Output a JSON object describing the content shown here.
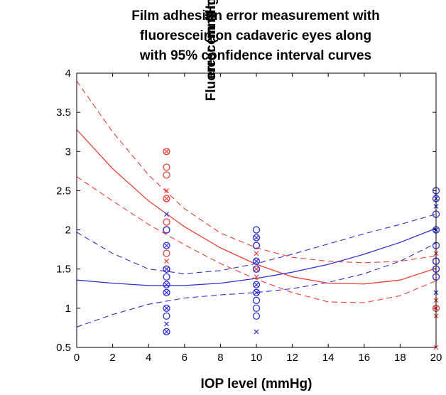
{
  "chart_data": {
    "type": "scatter",
    "title_lines": [
      "Film adhesion error measurement with",
      "fluorescein on cadaveric eyes along",
      "with 95% confidence interval curves"
    ],
    "xlabel": "IOP level (mmHg)",
    "ylabel_lines": [
      "Fluorescein film adhesion",
      "error (mmHg)"
    ],
    "xlim": [
      0,
      20
    ],
    "ylim": [
      0.5,
      4
    ],
    "x_ticks": [
      "0",
      "2",
      "4",
      "6",
      "8",
      "10",
      "12",
      "14",
      "16",
      "18",
      "20"
    ],
    "y_ticks": [
      "0.5",
      "1",
      "1.5",
      "2",
      "2.5",
      "3",
      "3.5",
      "4"
    ],
    "grid": false,
    "colors": {
      "red": "#e8403a",
      "blue": "#2f2fcc"
    },
    "series": [
      {
        "color": "red",
        "circles": [
          {
            "x": 5,
            "y": 3.0
          },
          {
            "x": 5,
            "y": 2.8
          },
          {
            "x": 5,
            "y": 2.7
          },
          {
            "x": 5,
            "y": 2.4
          },
          {
            "x": 5,
            "y": 2.1
          },
          {
            "x": 5,
            "y": 2.0
          },
          {
            "x": 5,
            "y": 1.7
          },
          {
            "x": 5,
            "y": 1.5
          },
          {
            "x": 10,
            "y": 1.8
          },
          {
            "x": 10,
            "y": 1.5
          },
          {
            "x": 20,
            "y": 1.6
          },
          {
            "x": 20,
            "y": 1.5
          },
          {
            "x": 20,
            "y": 1.4
          },
          {
            "x": 20,
            "y": 1.0
          }
        ],
        "crosses": [
          {
            "x": 5,
            "y": 3.0
          },
          {
            "x": 5,
            "y": 2.5
          },
          {
            "x": 5,
            "y": 2.4
          },
          {
            "x": 5,
            "y": 1.6
          },
          {
            "x": 10,
            "y": 1.7
          },
          {
            "x": 10,
            "y": 1.5
          },
          {
            "x": 10,
            "y": 1.4
          },
          {
            "x": 20,
            "y": 1.7
          },
          {
            "x": 20,
            "y": 1.1
          },
          {
            "x": 20,
            "y": 1.0
          },
          {
            "x": 20,
            "y": 0.9
          },
          {
            "x": 20,
            "y": 0.5
          }
        ],
        "fit": [
          {
            "x": 0,
            "y": 3.28
          },
          {
            "x": 2,
            "y": 2.78
          },
          {
            "x": 4,
            "y": 2.37
          },
          {
            "x": 6,
            "y": 2.04
          },
          {
            "x": 8,
            "y": 1.77
          },
          {
            "x": 10,
            "y": 1.56
          },
          {
            "x": 12,
            "y": 1.4
          },
          {
            "x": 14,
            "y": 1.32
          },
          {
            "x": 16,
            "y": 1.31
          },
          {
            "x": 18,
            "y": 1.36
          },
          {
            "x": 20,
            "y": 1.51
          }
        ],
        "ci_upper": [
          {
            "x": 0,
            "y": 3.9
          },
          {
            "x": 2,
            "y": 3.25
          },
          {
            "x": 4,
            "y": 2.7
          },
          {
            "x": 6,
            "y": 2.27
          },
          {
            "x": 8,
            "y": 1.96
          },
          {
            "x": 10,
            "y": 1.77
          },
          {
            "x": 12,
            "y": 1.65
          },
          {
            "x": 14,
            "y": 1.6
          },
          {
            "x": 16,
            "y": 1.58
          },
          {
            "x": 18,
            "y": 1.6
          },
          {
            "x": 20,
            "y": 1.67
          }
        ],
        "ci_lower": [
          {
            "x": 0,
            "y": 2.68
          },
          {
            "x": 2,
            "y": 2.37
          },
          {
            "x": 4,
            "y": 2.07
          },
          {
            "x": 6,
            "y": 1.81
          },
          {
            "x": 8,
            "y": 1.57
          },
          {
            "x": 10,
            "y": 1.37
          },
          {
            "x": 12,
            "y": 1.2
          },
          {
            "x": 14,
            "y": 1.08
          },
          {
            "x": 16,
            "y": 1.07
          },
          {
            "x": 18,
            "y": 1.16
          },
          {
            "x": 20,
            "y": 1.35
          }
        ]
      },
      {
        "color": "blue",
        "circles": [
          {
            "x": 5,
            "y": 2.0
          },
          {
            "x": 5,
            "y": 1.8
          },
          {
            "x": 5,
            "y": 1.5
          },
          {
            "x": 5,
            "y": 1.4
          },
          {
            "x": 5,
            "y": 1.3
          },
          {
            "x": 5,
            "y": 1.2
          },
          {
            "x": 5,
            "y": 1.0
          },
          {
            "x": 5,
            "y": 0.9
          },
          {
            "x": 5,
            "y": 0.7
          },
          {
            "x": 10,
            "y": 2.0
          },
          {
            "x": 10,
            "y": 1.9
          },
          {
            "x": 10,
            "y": 1.8
          },
          {
            "x": 10,
            "y": 1.6
          },
          {
            "x": 10,
            "y": 1.5
          },
          {
            "x": 10,
            "y": 1.3
          },
          {
            "x": 10,
            "y": 1.2
          },
          {
            "x": 10,
            "y": 1.1
          },
          {
            "x": 10,
            "y": 1.0
          },
          {
            "x": 10,
            "y": 0.9
          },
          {
            "x": 20,
            "y": 2.5
          },
          {
            "x": 20,
            "y": 2.4
          },
          {
            "x": 20,
            "y": 2.2
          },
          {
            "x": 20,
            "y": 2.0
          },
          {
            "x": 20,
            "y": 1.8
          },
          {
            "x": 20,
            "y": 1.6
          },
          {
            "x": 20,
            "y": 1.5
          },
          {
            "x": 20,
            "y": 1.4
          }
        ],
        "crosses": [
          {
            "x": 5,
            "y": 2.2
          },
          {
            "x": 5,
            "y": 1.8
          },
          {
            "x": 5,
            "y": 1.5
          },
          {
            "x": 5,
            "y": 1.3
          },
          {
            "x": 5,
            "y": 1.2
          },
          {
            "x": 5,
            "y": 1.0
          },
          {
            "x": 5,
            "y": 0.8
          },
          {
            "x": 5,
            "y": 0.7
          },
          {
            "x": 10,
            "y": 1.9
          },
          {
            "x": 10,
            "y": 1.6
          },
          {
            "x": 10,
            "y": 1.3
          },
          {
            "x": 10,
            "y": 1.2
          },
          {
            "x": 10,
            "y": 0.7
          },
          {
            "x": 20,
            "y": 2.4
          },
          {
            "x": 20,
            "y": 2.3
          },
          {
            "x": 20,
            "y": 2.0
          },
          {
            "x": 20,
            "y": 1.2
          }
        ],
        "fit": [
          {
            "x": 0,
            "y": 1.36
          },
          {
            "x": 2,
            "y": 1.32
          },
          {
            "x": 4,
            "y": 1.29
          },
          {
            "x": 6,
            "y": 1.29
          },
          {
            "x": 8,
            "y": 1.32
          },
          {
            "x": 10,
            "y": 1.38
          },
          {
            "x": 12,
            "y": 1.46
          },
          {
            "x": 14,
            "y": 1.56
          },
          {
            "x": 16,
            "y": 1.69
          },
          {
            "x": 18,
            "y": 1.84
          },
          {
            "x": 20,
            "y": 2.02
          }
        ],
        "ci_upper": [
          {
            "x": 0,
            "y": 1.97
          },
          {
            "x": 2,
            "y": 1.7
          },
          {
            "x": 4,
            "y": 1.5
          },
          {
            "x": 6,
            "y": 1.44
          },
          {
            "x": 8,
            "y": 1.48
          },
          {
            "x": 10,
            "y": 1.57
          },
          {
            "x": 12,
            "y": 1.69
          },
          {
            "x": 14,
            "y": 1.82
          },
          {
            "x": 16,
            "y": 1.95
          },
          {
            "x": 18,
            "y": 2.07
          },
          {
            "x": 20,
            "y": 2.2
          }
        ],
        "ci_lower": [
          {
            "x": 0,
            "y": 0.76
          },
          {
            "x": 2,
            "y": 0.92
          },
          {
            "x": 4,
            "y": 1.05
          },
          {
            "x": 6,
            "y": 1.13
          },
          {
            "x": 8,
            "y": 1.17
          },
          {
            "x": 10,
            "y": 1.2
          },
          {
            "x": 12,
            "y": 1.25
          },
          {
            "x": 14,
            "y": 1.33
          },
          {
            "x": 16,
            "y": 1.44
          },
          {
            "x": 18,
            "y": 1.6
          },
          {
            "x": 20,
            "y": 1.83
          }
        ]
      }
    ]
  }
}
